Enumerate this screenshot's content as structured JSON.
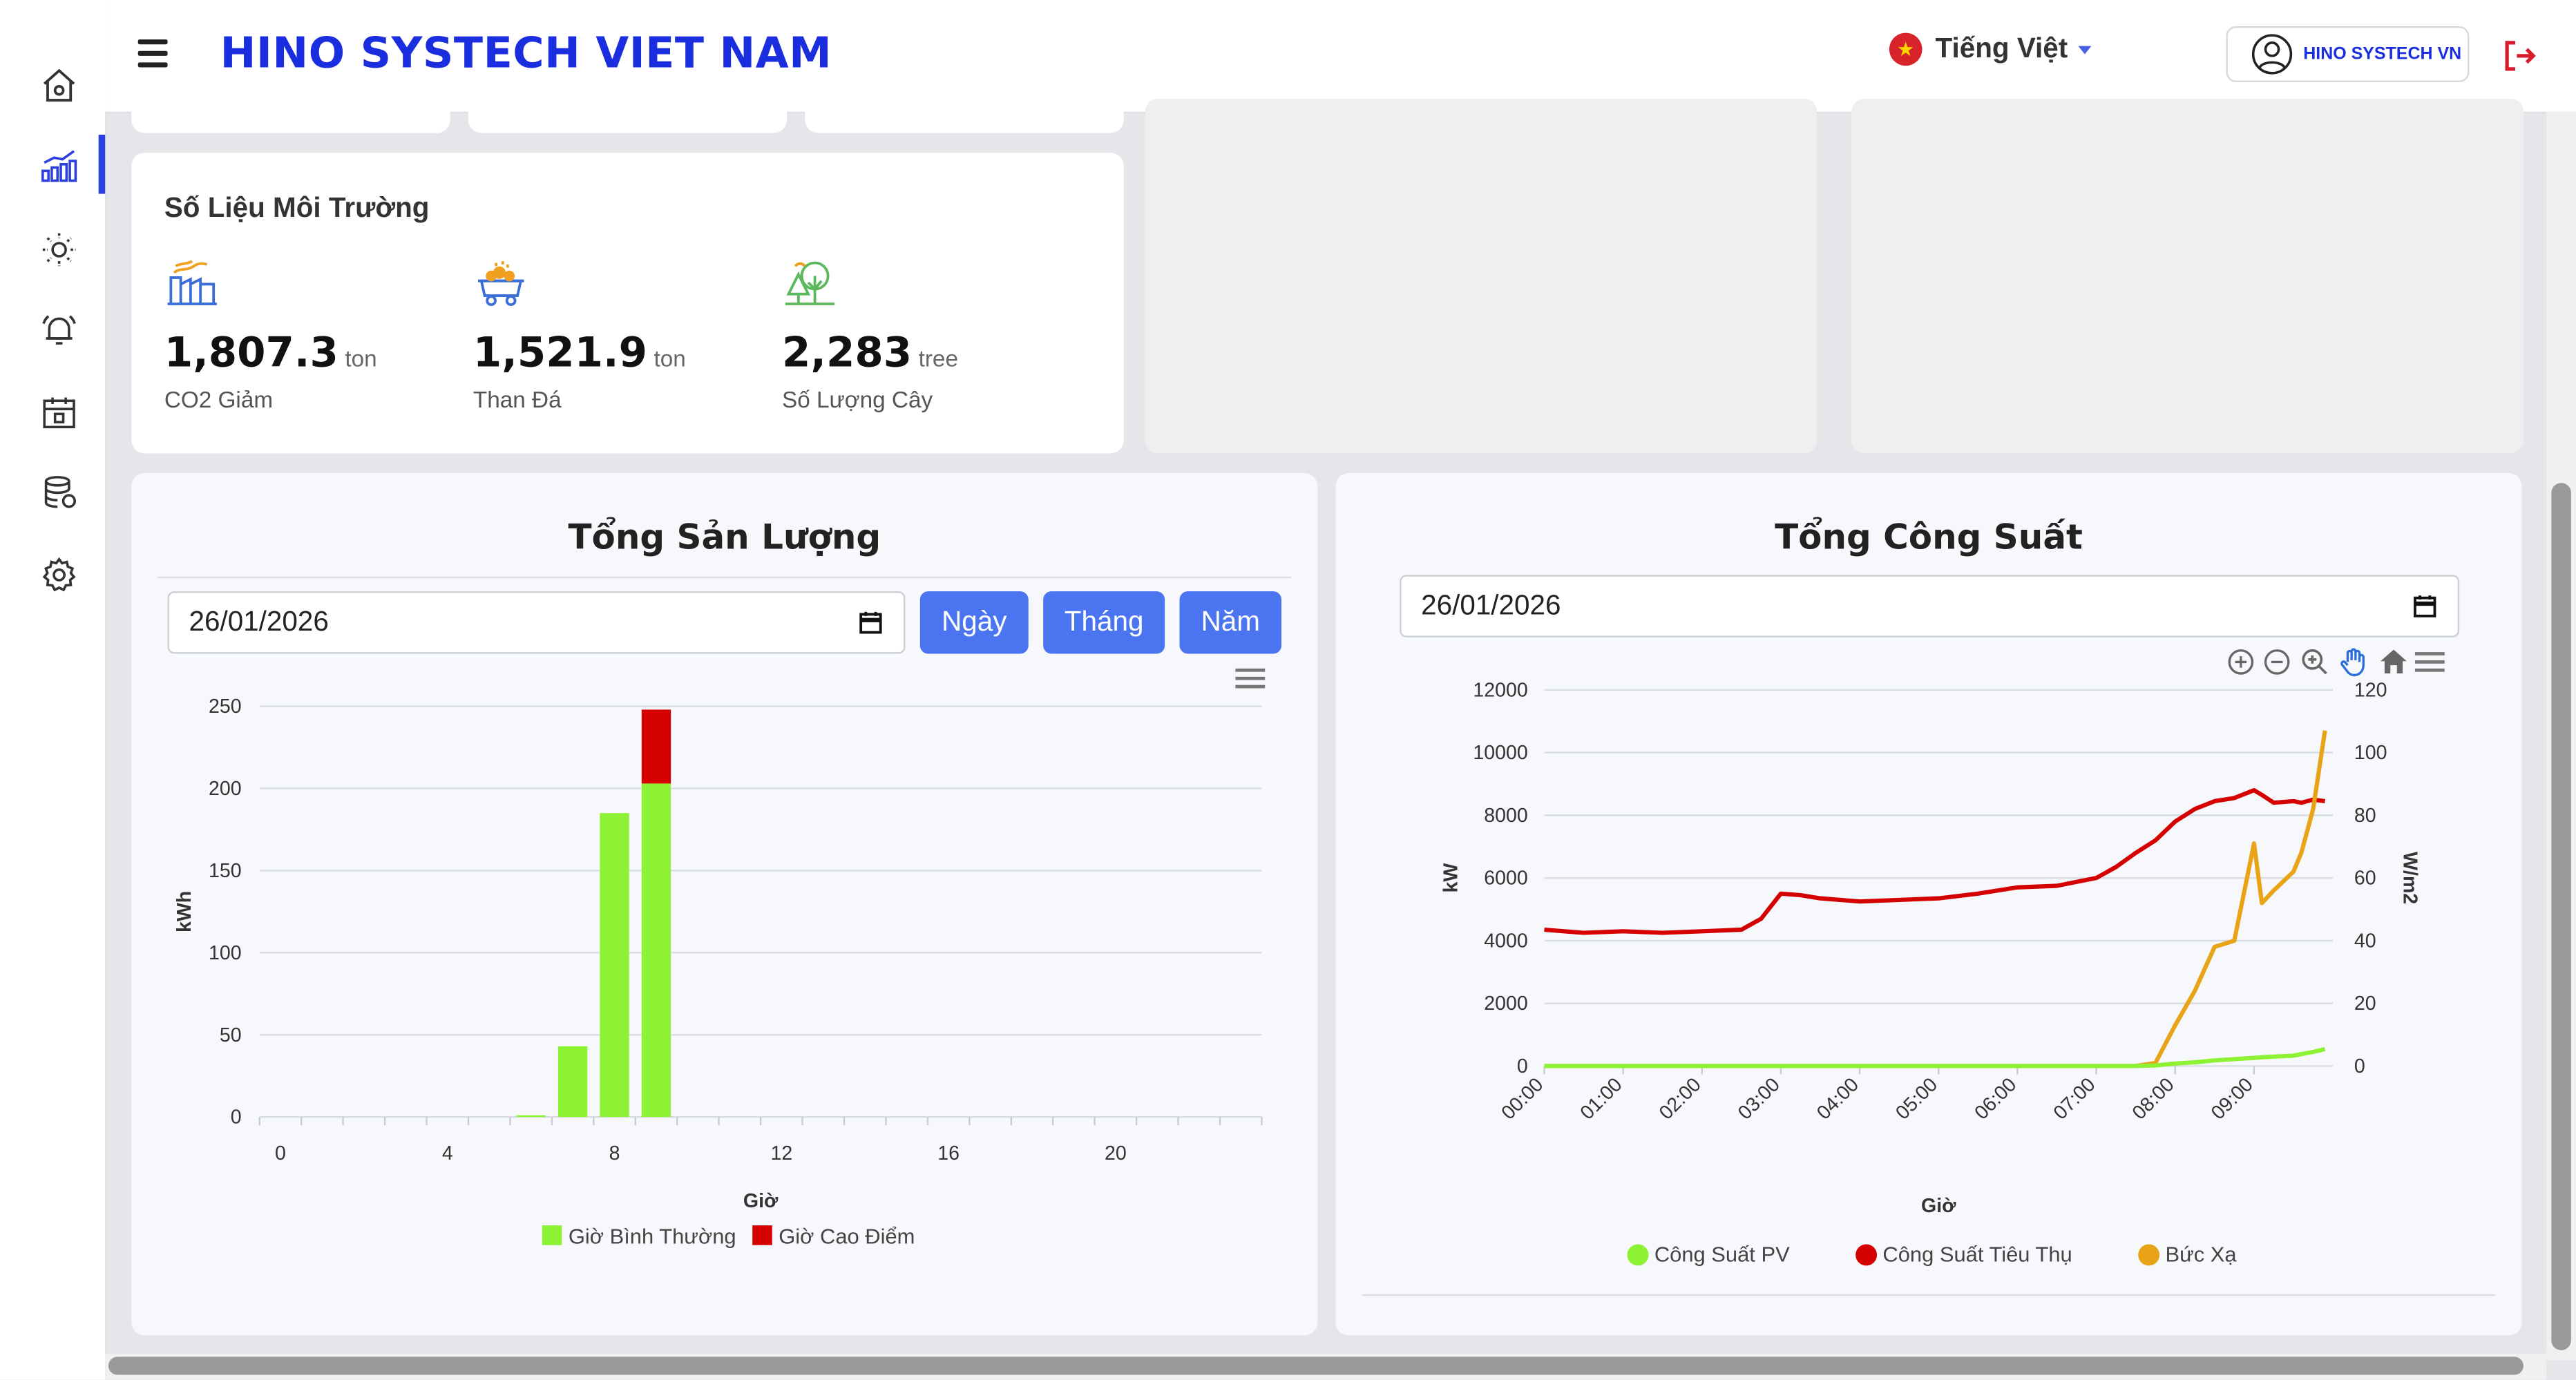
{
  "header": {
    "brand": "HINO SYSTECH VIET NAM",
    "language": "Tiếng Việt",
    "user": "HINO SYSTECH VN"
  },
  "sidebar": {
    "items": [
      "home-icon",
      "chart-icon",
      "sun-icon",
      "alarm-icon",
      "calendar-icon",
      "database-icon",
      "settings-icon"
    ],
    "active_index": 1
  },
  "env": {
    "title": "Số Liệu Môi Trường",
    "items": [
      {
        "icon": "factory-icon",
        "value": "1,807.3",
        "unit": "ton",
        "label": "CO2 Giảm"
      },
      {
        "icon": "coal-cart-icon",
        "value": "1,521.9",
        "unit": "ton",
        "label": "Than Đá"
      },
      {
        "icon": "tree-icon",
        "value": "2,283",
        "unit": "tree",
        "label": "Số Lượng Cây"
      }
    ]
  },
  "output": {
    "title": "Tổng Sản Lượng",
    "date": "26/01/2026",
    "buttons": {
      "day": "Ngày",
      "month": "Tháng",
      "year": "Năm"
    },
    "ylabel": "kWh",
    "xlabel": "Giờ",
    "yticks": [
      "0",
      "50",
      "100",
      "150",
      "200",
      "250"
    ],
    "xticks": [
      "0",
      "4",
      "8",
      "12",
      "16",
      "20"
    ],
    "legend": [
      "Giờ Bình Thường",
      "Giờ Cao Điểm"
    ]
  },
  "power": {
    "title": "Tổng Công Suất",
    "date": "26/01/2026",
    "ylabel_left": "kW",
    "ylabel_right": "W/m2",
    "xlabel": "Giờ",
    "yticks_left": [
      "0",
      "2000",
      "4000",
      "6000",
      "8000",
      "10000",
      "12000"
    ],
    "yticks_right": [
      "0",
      "20",
      "40",
      "60",
      "80",
      "100",
      "120"
    ],
    "xticks": [
      "00:00",
      "01:00",
      "02:00",
      "03:00",
      "04:00",
      "05:00",
      "06:00",
      "07:00",
      "08:00",
      "09:00"
    ],
    "legend": [
      "Công Suất PV",
      "Công Suất Tiêu Thụ",
      "Bức Xạ"
    ]
  },
  "chart_data": [
    {
      "type": "bar",
      "title": "Tổng Sản Lượng",
      "xlabel": "Giờ",
      "ylabel": "kWh",
      "ylim": [
        0,
        250
      ],
      "categories": [
        0,
        1,
        2,
        3,
        4,
        5,
        6,
        7,
        8,
        9,
        10,
        11,
        12,
        13,
        14,
        15,
        16,
        17,
        18,
        19,
        20,
        21,
        22,
        23
      ],
      "stacked": true,
      "series": [
        {
          "name": "Giờ Bình Thường",
          "color": "#8ef234",
          "values": [
            0,
            0,
            0,
            0,
            0,
            0,
            1,
            43,
            185,
            203,
            0,
            0,
            0,
            0,
            0,
            0,
            0,
            0,
            0,
            0,
            0,
            0,
            0,
            0
          ]
        },
        {
          "name": "Giờ Cao Điểm",
          "color": "#d50000",
          "values": [
            0,
            0,
            0,
            0,
            0,
            0,
            0,
            0,
            0,
            45,
            0,
            0,
            0,
            0,
            0,
            0,
            0,
            0,
            0,
            0,
            0,
            0,
            0,
            0
          ]
        }
      ]
    },
    {
      "type": "line",
      "title": "Tổng Công Suất",
      "xlabel": "Giờ",
      "ylabel": "kW",
      "ylabel_right": "W/m2",
      "ylim": [
        0,
        12000
      ],
      "ylim_right": [
        0,
        120
      ],
      "x": [
        0,
        0.5,
        1,
        1.5,
        2,
        2.5,
        2.75,
        3,
        3.25,
        3.5,
        4,
        4.5,
        5,
        5.5,
        6,
        6.5,
        7,
        7.25,
        7.5,
        7.75,
        8,
        8.25,
        8.5,
        8.75,
        9,
        9.1,
        9.25,
        9.5,
        9.6,
        9.75,
        9.9
      ],
      "series": [
        {
          "name": "Công Suất PV",
          "axis": "left",
          "color": "#8ef234",
          "values": [
            0,
            0,
            0,
            0,
            0,
            0,
            0,
            0,
            0,
            0,
            0,
            0,
            0,
            0,
            0,
            0,
            0,
            0,
            0,
            20,
            80,
            120,
            180,
            220,
            260,
            280,
            300,
            330,
            380,
            450,
            540
          ]
        },
        {
          "name": "Công Suất Tiêu Thụ",
          "axis": "left",
          "color": "#d50000",
          "values": [
            4350,
            4250,
            4300,
            4250,
            4300,
            4350,
            4700,
            5500,
            5450,
            5350,
            5250,
            5300,
            5350,
            5500,
            5700,
            5750,
            6000,
            6350,
            6800,
            7200,
            7800,
            8200,
            8450,
            8550,
            8800,
            8650,
            8400,
            8450,
            8400,
            8500,
            8450
          ]
        },
        {
          "name": "Bức Xạ",
          "axis": "right",
          "color": "#e8a317",
          "values": [
            0,
            0,
            0,
            0,
            0,
            0,
            0,
            0,
            0,
            0,
            0,
            0,
            0,
            0,
            0,
            0,
            0,
            0,
            0,
            1,
            13,
            24,
            38,
            40,
            71,
            52,
            56,
            62,
            68,
            82,
            107
          ]
        }
      ]
    }
  ]
}
